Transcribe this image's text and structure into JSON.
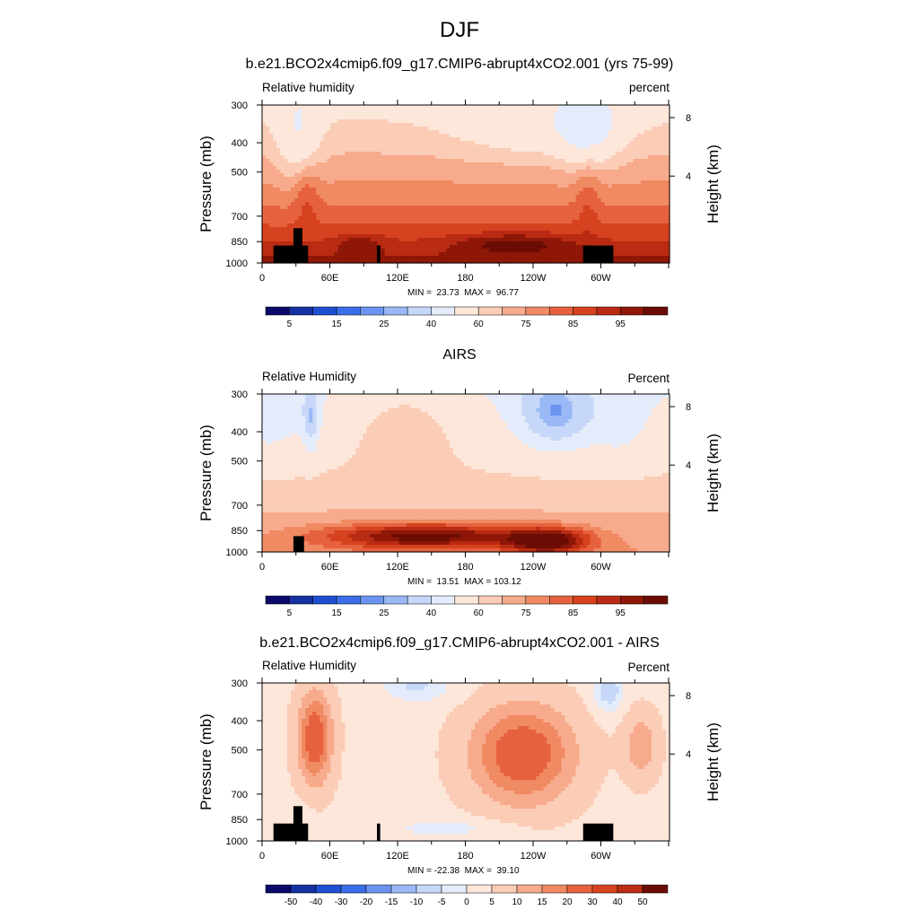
{
  "page": {
    "title": "DJF"
  },
  "panels": [
    {
      "title": "b.e21.BCO2x4cmip6.f09_g17.CMIP6-abrupt4xCO2.001 (yrs 75-99)",
      "left_label": "Relative humidity",
      "right_label": "percent",
      "min_max": "MIN =  23.73  MAX =  96.77",
      "colorbar_labels": [
        "5",
        "15",
        "25",
        "40",
        "60",
        "75",
        "85",
        "95"
      ]
    },
    {
      "title": "AIRS",
      "left_label": "Relative Humidity",
      "right_label": "Percent",
      "min_max": "MIN =  13.51  MAX = 103.12",
      "colorbar_labels": [
        "5",
        "15",
        "25",
        "40",
        "60",
        "75",
        "85",
        "95"
      ]
    },
    {
      "title": "b.e21.BCO2x4cmip6.f09_g17.CMIP6-abrupt4xCO2.001 - AIRS",
      "left_label": "Relative Humidity",
      "right_label": "Percent",
      "min_max": "MIN = -22.38  MAX =  39.10",
      "colorbar_labels": [
        "-50",
        "-40",
        "-30",
        "-20",
        "-15",
        "-10",
        "-5",
        "0",
        "5",
        "10",
        "15",
        "20",
        "30",
        "40",
        "50"
      ]
    }
  ],
  "axes": {
    "ylabel_left": "Pressure (mb)",
    "ylabel_right": "Height (km)"
  },
  "chart_data": [
    {
      "type": "heatmap",
      "title": "b.e21.BCO2x4cmip6.f09_g17.CMIP6-abrupt4xCO2.001 (yrs 75-99)",
      "variable": "Relative humidity",
      "units": "percent",
      "x_ticks": [
        "0",
        "60E",
        "120E",
        "180",
        "120W",
        "60W"
      ],
      "y_ticks": [
        "300",
        "400",
        "500",
        "700",
        "850",
        "1000"
      ],
      "y2_ticks": [
        "8",
        "4"
      ],
      "ylabel": "Pressure (mb)",
      "y2label": "Height (km)",
      "min": 23.73,
      "max": 96.77,
      "contour_levels": [
        5,
        10,
        15,
        20,
        25,
        30,
        40,
        50,
        60,
        65,
        70,
        75,
        80,
        85,
        90,
        95
      ],
      "colors": [
        "#0a0a6b",
        "#1530a0",
        "#1e4fd1",
        "#3a6ee8",
        "#6a94f0",
        "#99b8f5",
        "#c6d7f9",
        "#e4ecfb",
        "#fde6da",
        "#fbccb6",
        "#f7ab8c",
        "#f08a63",
        "#e6623e",
        "#d6421f",
        "#b92b12",
        "#8e1708",
        "#6b0d05"
      ]
    },
    {
      "type": "heatmap",
      "title": "AIRS",
      "variable": "Relative Humidity",
      "units": "Percent",
      "x_ticks": [
        "0",
        "60E",
        "120E",
        "180",
        "120W",
        "60W"
      ],
      "y_ticks": [
        "300",
        "400",
        "500",
        "700",
        "850",
        "1000"
      ],
      "y2_ticks": [
        "8",
        "4"
      ],
      "ylabel": "Pressure (mb)",
      "y2label": "Height (km)",
      "min": 13.51,
      "max": 103.12,
      "contour_levels": [
        5,
        10,
        15,
        20,
        25,
        30,
        40,
        50,
        60,
        65,
        70,
        75,
        80,
        85,
        90,
        95
      ],
      "colors": [
        "#0a0a6b",
        "#1530a0",
        "#1e4fd1",
        "#3a6ee8",
        "#6a94f0",
        "#99b8f5",
        "#c6d7f9",
        "#e4ecfb",
        "#fde6da",
        "#fbccb6",
        "#f7ab8c",
        "#f08a63",
        "#e6623e",
        "#d6421f",
        "#b92b12",
        "#8e1708",
        "#6b0d05"
      ]
    },
    {
      "type": "heatmap",
      "title": "b.e21.BCO2x4cmip6.f09_g17.CMIP6-abrupt4xCO2.001 - AIRS",
      "variable": "Relative Humidity",
      "units": "Percent",
      "x_ticks": [
        "0",
        "60E",
        "120E",
        "180",
        "120W",
        "60W"
      ],
      "y_ticks": [
        "300",
        "400",
        "500",
        "700",
        "850",
        "1000"
      ],
      "y2_ticks": [
        "8",
        "4"
      ],
      "ylabel": "Pressure (mb)",
      "y2label": "Height (km)",
      "min": -22.38,
      "max": 39.1,
      "contour_levels": [
        -50,
        -40,
        -30,
        -20,
        -15,
        -10,
        -5,
        0,
        5,
        10,
        15,
        20,
        30,
        40,
        50
      ],
      "colors": [
        "#0a0a6b",
        "#1530a0",
        "#1e4fd1",
        "#3a6ee8",
        "#6a94f0",
        "#99b8f5",
        "#c6d7f9",
        "#e4ecfb",
        "#fde6da",
        "#fbccb6",
        "#f7ab8c",
        "#f08a63",
        "#e6623e",
        "#d6421f",
        "#b92b12",
        "#6b0d05"
      ]
    }
  ]
}
